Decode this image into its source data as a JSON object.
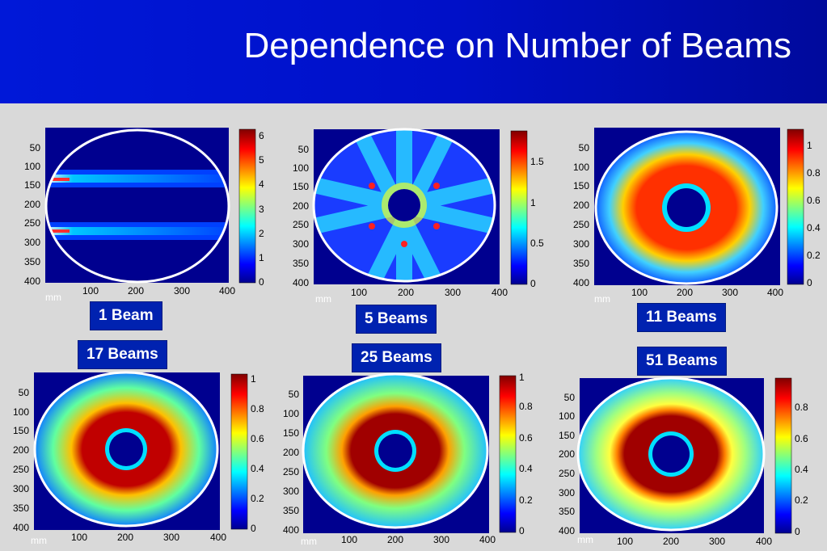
{
  "title": "Dependence on Number of Beams",
  "colors": {
    "header_blue": "#0018d8",
    "label_bg": "#0022b0",
    "plot_bg": "#00008f"
  },
  "panels": [
    {
      "label": "1 Beam",
      "unit": "mm",
      "yticks": [
        "50",
        "100",
        "150",
        "200",
        "250",
        "300",
        "350",
        "400"
      ],
      "xticks": [
        "100",
        "200",
        "300",
        "400"
      ],
      "cbar_ticks": [
        "6",
        "5",
        "4",
        "3",
        "2",
        "1",
        "0"
      ]
    },
    {
      "label": "5 Beams",
      "unit": "mm",
      "yticks": [
        "50",
        "100",
        "150",
        "200",
        "250",
        "300",
        "350",
        "400"
      ],
      "xticks": [
        "100",
        "200",
        "300",
        "400"
      ],
      "cbar_ticks": [
        "1.5",
        "1",
        "0.5",
        "0"
      ]
    },
    {
      "label": "11 Beams",
      "unit": "mm",
      "yticks": [
        "50",
        "100",
        "150",
        "200",
        "250",
        "300",
        "350",
        "400"
      ],
      "xticks": [
        "100",
        "200",
        "300",
        "400"
      ],
      "cbar_ticks": [
        "1",
        "0.8",
        "0.6",
        "0.4",
        "0.2",
        "0"
      ]
    },
    {
      "label": "17 Beams",
      "unit": "mm",
      "yticks": [
        "50",
        "100",
        "150",
        "200",
        "250",
        "300",
        "350",
        "400"
      ],
      "xticks": [
        "100",
        "200",
        "300",
        "400"
      ],
      "cbar_ticks": [
        "1",
        "0.8",
        "0.6",
        "0.4",
        "0.2",
        "0"
      ]
    },
    {
      "label": "25 Beams",
      "unit": "mm",
      "yticks": [
        "50",
        "100",
        "150",
        "200",
        "250",
        "300",
        "350",
        "400"
      ],
      "xticks": [
        "100",
        "200",
        "300",
        "400"
      ],
      "cbar_ticks": [
        "1",
        "0.8",
        "0.6",
        "0.4",
        "0.2",
        "0"
      ]
    },
    {
      "label": "51 Beams",
      "unit": "mm",
      "yticks": [
        "50",
        "100",
        "150",
        "200",
        "250",
        "300",
        "350",
        "400"
      ],
      "xticks": [
        "100",
        "200",
        "300",
        "400"
      ],
      "cbar_ticks": [
        "0.8",
        "0.6",
        "0.4",
        "0.2",
        "0"
      ]
    }
  ]
}
